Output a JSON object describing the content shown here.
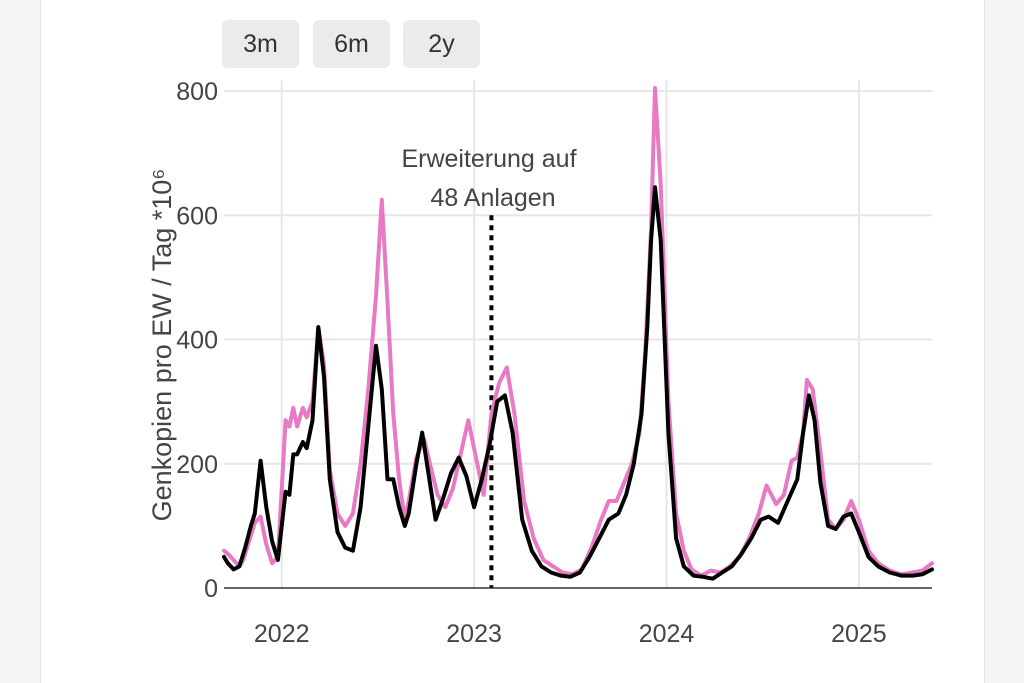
{
  "range_buttons": [
    "3m",
    "6m",
    "2y"
  ],
  "colors": {
    "series_primary": "#000000",
    "series_secondary": "#e879c4",
    "grid": "#e6e6e6",
    "button_bg": "#ebebeb"
  },
  "chart_data": {
    "type": "line",
    "title": "",
    "xlabel": "",
    "ylabel": "Genkopien pro EW / Tag *10⁶",
    "xlim": [
      2021.7,
      2025.38
    ],
    "ylim": [
      0,
      850
    ],
    "y_ticks": [
      0,
      200,
      400,
      600,
      800
    ],
    "x_ticks": [
      2022,
      2023,
      2024,
      2025
    ],
    "x_tick_labels": [
      "2022",
      "2023",
      "2024",
      "2025"
    ],
    "grid": true,
    "legend": "none",
    "annotation": {
      "text_lines": [
        "Erweiterung auf",
        "48 Anlagen"
      ],
      "x": 2023.09
    },
    "series": [
      {
        "color": "#e879c4",
        "points": [
          [
            2021.7,
            60
          ],
          [
            2021.72,
            55
          ],
          [
            2021.75,
            45
          ],
          [
            2021.78,
            35
          ],
          [
            2021.8,
            45
          ],
          [
            2021.83,
            75
          ],
          [
            2021.86,
            105
          ],
          [
            2021.89,
            115
          ],
          [
            2021.92,
            70
          ],
          [
            2021.95,
            40
          ],
          [
            2021.98,
            50
          ],
          [
            2022.02,
            270
          ],
          [
            2022.04,
            260
          ],
          [
            2022.06,
            290
          ],
          [
            2022.08,
            260
          ],
          [
            2022.11,
            290
          ],
          [
            2022.13,
            275
          ],
          [
            2022.16,
            300
          ],
          [
            2022.19,
            420
          ],
          [
            2022.22,
            360
          ],
          [
            2022.25,
            190
          ],
          [
            2022.29,
            120
          ],
          [
            2022.33,
            100
          ],
          [
            2022.37,
            120
          ],
          [
            2022.41,
            200
          ],
          [
            2022.45,
            320
          ],
          [
            2022.49,
            470
          ],
          [
            2022.52,
            625
          ],
          [
            2022.55,
            460
          ],
          [
            2022.58,
            280
          ],
          [
            2022.61,
            175
          ],
          [
            2022.64,
            110
          ],
          [
            2022.66,
            140
          ],
          [
            2022.7,
            210
          ],
          [
            2022.74,
            240
          ],
          [
            2022.77,
            200
          ],
          [
            2022.81,
            150
          ],
          [
            2022.85,
            130
          ],
          [
            2022.89,
            160
          ],
          [
            2022.93,
            215
          ],
          [
            2022.97,
            270
          ],
          [
            2023.01,
            210
          ],
          [
            2023.05,
            150
          ],
          [
            2023.09,
            280
          ],
          [
            2023.13,
            330
          ],
          [
            2023.17,
            355
          ],
          [
            2023.21,
            280
          ],
          [
            2023.26,
            140
          ],
          [
            2023.31,
            80
          ],
          [
            2023.36,
            45
          ],
          [
            2023.41,
            35
          ],
          [
            2023.46,
            25
          ],
          [
            2023.51,
            22
          ],
          [
            2023.56,
            30
          ],
          [
            2023.61,
            65
          ],
          [
            2023.66,
            110
          ],
          [
            2023.7,
            140
          ],
          [
            2023.74,
            140
          ],
          [
            2023.78,
            170
          ],
          [
            2023.82,
            200
          ],
          [
            2023.86,
            250
          ],
          [
            2023.89,
            380
          ],
          [
            2023.92,
            580
          ],
          [
            2023.94,
            805
          ],
          [
            2023.97,
            650
          ],
          [
            2024.01,
            300
          ],
          [
            2024.05,
            120
          ],
          [
            2024.09,
            60
          ],
          [
            2024.13,
            30
          ],
          [
            2024.18,
            20
          ],
          [
            2024.23,
            28
          ],
          [
            2024.28,
            25
          ],
          [
            2024.33,
            35
          ],
          [
            2024.38,
            50
          ],
          [
            2024.43,
            80
          ],
          [
            2024.48,
            120
          ],
          [
            2024.52,
            165
          ],
          [
            2024.57,
            135
          ],
          [
            2024.61,
            150
          ],
          [
            2024.65,
            205
          ],
          [
            2024.68,
            210
          ],
          [
            2024.71,
            250
          ],
          [
            2024.73,
            335
          ],
          [
            2024.76,
            320
          ],
          [
            2024.8,
            220
          ],
          [
            2024.84,
            110
          ],
          [
            2024.88,
            95
          ],
          [
            2024.92,
            110
          ],
          [
            2024.96,
            140
          ],
          [
            2025.0,
            110
          ],
          [
            2025.05,
            60
          ],
          [
            2025.1,
            40
          ],
          [
            2025.16,
            28
          ],
          [
            2025.22,
            22
          ],
          [
            2025.28,
            25
          ],
          [
            2025.33,
            28
          ],
          [
            2025.38,
            40
          ]
        ]
      },
      {
        "color": "#000000",
        "points": [
          [
            2021.7,
            50
          ],
          [
            2021.72,
            40
          ],
          [
            2021.75,
            30
          ],
          [
            2021.78,
            35
          ],
          [
            2021.81,
            65
          ],
          [
            2021.84,
            100
          ],
          [
            2021.86,
            120
          ],
          [
            2021.89,
            205
          ],
          [
            2021.92,
            130
          ],
          [
            2021.95,
            75
          ],
          [
            2021.98,
            45
          ],
          [
            2022.02,
            155
          ],
          [
            2022.04,
            150
          ],
          [
            2022.06,
            215
          ],
          [
            2022.08,
            215
          ],
          [
            2022.11,
            235
          ],
          [
            2022.13,
            225
          ],
          [
            2022.16,
            270
          ],
          [
            2022.19,
            420
          ],
          [
            2022.22,
            340
          ],
          [
            2022.25,
            175
          ],
          [
            2022.29,
            90
          ],
          [
            2022.33,
            65
          ],
          [
            2022.37,
            60
          ],
          [
            2022.41,
            130
          ],
          [
            2022.45,
            260
          ],
          [
            2022.49,
            390
          ],
          [
            2022.52,
            320
          ],
          [
            2022.55,
            175
          ],
          [
            2022.58,
            175
          ],
          [
            2022.61,
            130
          ],
          [
            2022.64,
            100
          ],
          [
            2022.66,
            120
          ],
          [
            2022.7,
            200
          ],
          [
            2022.73,
            250
          ],
          [
            2022.76,
            190
          ],
          [
            2022.8,
            110
          ],
          [
            2022.84,
            145
          ],
          [
            2022.88,
            185
          ],
          [
            2022.92,
            210
          ],
          [
            2022.96,
            180
          ],
          [
            2023.0,
            130
          ],
          [
            2023.04,
            175
          ],
          [
            2023.08,
            230
          ],
          [
            2023.12,
            300
          ],
          [
            2023.16,
            310
          ],
          [
            2023.2,
            250
          ],
          [
            2023.25,
            110
          ],
          [
            2023.3,
            60
          ],
          [
            2023.35,
            35
          ],
          [
            2023.4,
            25
          ],
          [
            2023.45,
            20
          ],
          [
            2023.5,
            18
          ],
          [
            2023.55,
            25
          ],
          [
            2023.6,
            50
          ],
          [
            2023.65,
            80
          ],
          [
            2023.7,
            110
          ],
          [
            2023.75,
            120
          ],
          [
            2023.79,
            150
          ],
          [
            2023.83,
            200
          ],
          [
            2023.87,
            280
          ],
          [
            2023.9,
            420
          ],
          [
            2023.92,
            560
          ],
          [
            2023.94,
            645
          ],
          [
            2023.97,
            560
          ],
          [
            2024.01,
            250
          ],
          [
            2024.05,
            80
          ],
          [
            2024.09,
            35
          ],
          [
            2024.14,
            20
          ],
          [
            2024.19,
            18
          ],
          [
            2024.24,
            15
          ],
          [
            2024.29,
            25
          ],
          [
            2024.34,
            35
          ],
          [
            2024.39,
            55
          ],
          [
            2024.44,
            80
          ],
          [
            2024.49,
            110
          ],
          [
            2024.53,
            115
          ],
          [
            2024.58,
            105
          ],
          [
            2024.63,
            140
          ],
          [
            2024.68,
            175
          ],
          [
            2024.71,
            250
          ],
          [
            2024.74,
            310
          ],
          [
            2024.77,
            270
          ],
          [
            2024.8,
            170
          ],
          [
            2024.84,
            100
          ],
          [
            2024.88,
            95
          ],
          [
            2024.92,
            115
          ],
          [
            2024.96,
            120
          ],
          [
            2025.0,
            90
          ],
          [
            2025.05,
            50
          ],
          [
            2025.1,
            35
          ],
          [
            2025.16,
            25
          ],
          [
            2025.22,
            20
          ],
          [
            2025.28,
            20
          ],
          [
            2025.33,
            22
          ],
          [
            2025.38,
            30
          ]
        ]
      }
    ]
  }
}
